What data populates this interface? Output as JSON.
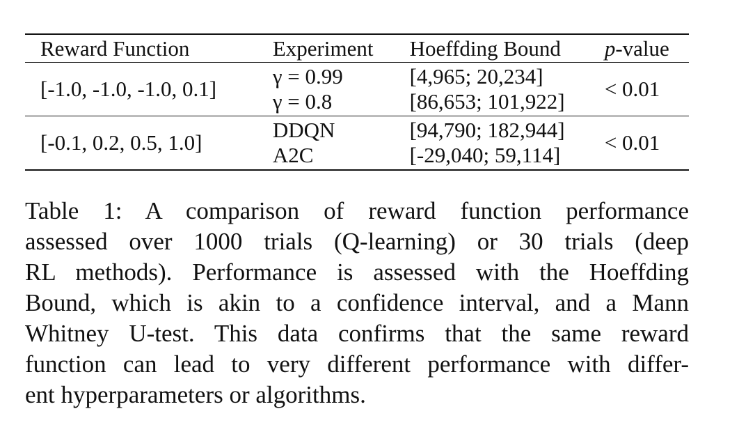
{
  "table": {
    "headers": {
      "reward_function": "Reward Function",
      "experiment": "Experiment",
      "hoeffding_bound": "Hoeffding Bound",
      "p_value_prefix": "p",
      "p_value_suffix": "-value"
    },
    "groups": [
      {
        "reward_function": "[-1.0, -1.0, -1.0, 0.1]",
        "rows": [
          {
            "experiment": "γ = 0.99",
            "bound": "[4,965; 20,234]"
          },
          {
            "experiment": "γ = 0.8",
            "bound": "[86,653; 101,922]"
          }
        ],
        "p_value": "< 0.01"
      },
      {
        "reward_function": "[-0.1, 0.2, 0.5, 1.0]",
        "rows": [
          {
            "experiment": "DDQN",
            "bound": "[94,790; 182,944]"
          },
          {
            "experiment": "A2C",
            "bound": "[-29,040; 59,114]"
          }
        ],
        "p_value": "< 0.01"
      }
    ]
  },
  "caption": {
    "lines": [
      "Table 1: A comparison of reward function performance",
      "assessed over 1000 trials (Q-learning) or 30 trials (deep",
      "RL methods). Performance is assessed with the Hoeffding",
      "Bound, which is akin to a confidence interval, and a Mann",
      "Whitney U-test. This data confirms that the same reward",
      "function can lead to very different performance with differ-",
      "ent hyperparameters or algorithms."
    ]
  }
}
